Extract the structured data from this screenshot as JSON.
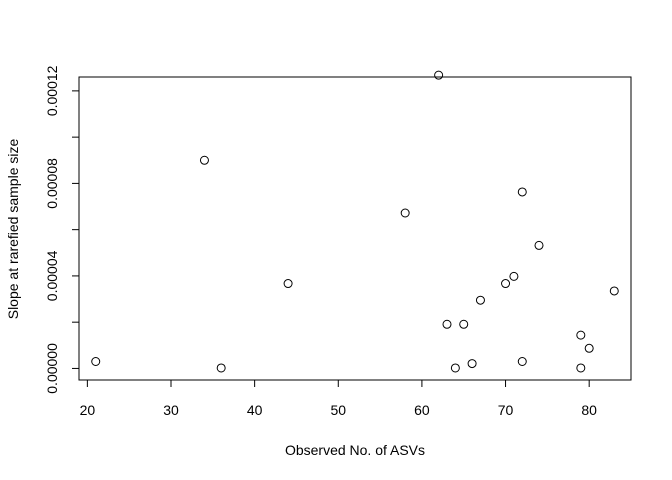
{
  "chart_data": {
    "type": "scatter",
    "title": "",
    "xlabel": "Observed No. of ASVs",
    "ylabel": "Slope at rarefied sample size",
    "xlim": [
      19,
      85
    ],
    "ylim": [
      -5e-06,
      0.000126
    ],
    "xticks": [
      20,
      30,
      40,
      50,
      60,
      70,
      80
    ],
    "xtick_labels": [
      "20",
      "30",
      "40",
      "50",
      "60",
      "70",
      "80"
    ],
    "yticks": [
      0,
      4e-05,
      8e-05,
      0.00012
    ],
    "ytick_labels": [
      "0.00000",
      "0.00004",
      "0.00008",
      "0.00012"
    ],
    "minor_yticks": [
      2e-05,
      6e-05,
      0.0001
    ],
    "grid": false,
    "legend": "none",
    "marker": "open-circle",
    "points": [
      {
        "x": 21,
        "y": 3e-06
      },
      {
        "x": 34,
        "y": 9e-05
      },
      {
        "x": 36,
        "y": 2e-07
      },
      {
        "x": 44,
        "y": 3.67e-05
      },
      {
        "x": 58,
        "y": 6.72e-05
      },
      {
        "x": 62,
        "y": 0.0001268
      },
      {
        "x": 63,
        "y": 1.91e-05
      },
      {
        "x": 64,
        "y": 2e-07
      },
      {
        "x": 65,
        "y": 1.91e-05
      },
      {
        "x": 66,
        "y": 2.1e-06
      },
      {
        "x": 67,
        "y": 2.95e-05
      },
      {
        "x": 70,
        "y": 3.67e-05
      },
      {
        "x": 71,
        "y": 3.98e-05
      },
      {
        "x": 72,
        "y": 7.63e-05
      },
      {
        "x": 72,
        "y": 3e-06
      },
      {
        "x": 74,
        "y": 5.32e-05
      },
      {
        "x": 79,
        "y": 1.44e-05
      },
      {
        "x": 79,
        "y": 2e-07
      },
      {
        "x": 80,
        "y": 8.7e-06
      },
      {
        "x": 83,
        "y": 3.35e-05
      }
    ]
  }
}
